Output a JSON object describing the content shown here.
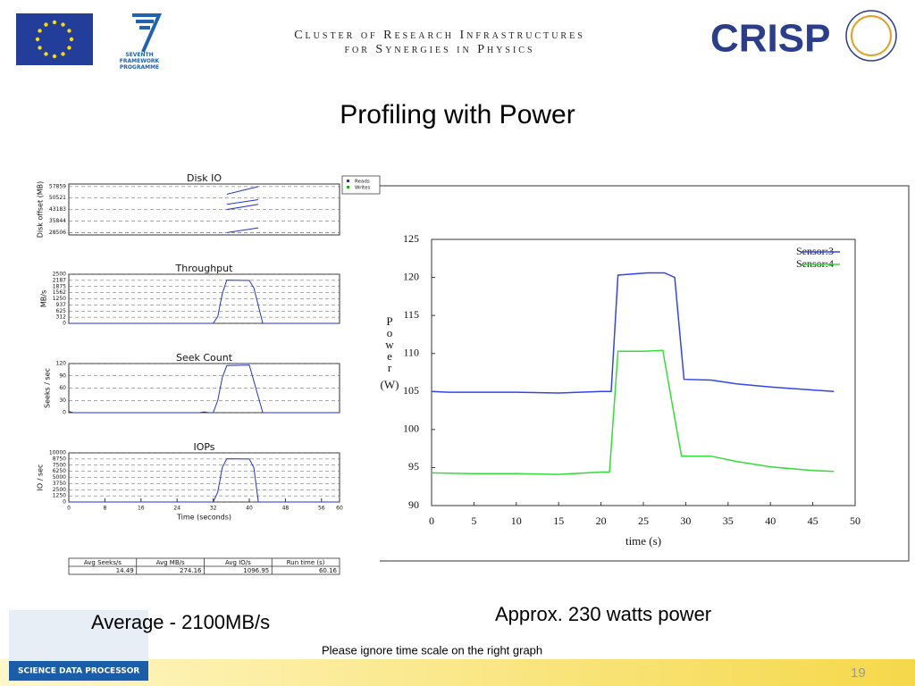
{
  "header": {
    "line1": "Cluster of Research Infrastructures",
    "line2": "for Synergies in Physics",
    "fp7_logo": "SEVENTH FRAMEWORK PROGRAMME",
    "crisp_logo": "CRISP"
  },
  "slide": {
    "title": "Profiling with Power",
    "left_caption": "Average - 2100MB/s",
    "right_caption": "Approx. 230 watts power",
    "note": "Please ignore time scale on the right graph",
    "page_number": "19",
    "footer_logo": "SCIENCE DATA PROCESSOR"
  },
  "table": {
    "columns": [
      "Avg Seeks/s",
      "Avg MB/s",
      "Avg IO/s",
      "Run time (s)"
    ],
    "rows": [
      [
        14.49,
        274.16,
        1096.95,
        60.16
      ]
    ]
  },
  "chart_data": [
    {
      "type": "line",
      "title": "Disk IO",
      "y_label": "Disk offset (MB)",
      "xlim": [
        0,
        60
      ],
      "ylim": [
        27000,
        59500
      ],
      "yticks": [
        28506,
        35844,
        43183,
        50521,
        57859
      ],
      "grid": true,
      "legend": "outside right",
      "series": [
        {
          "name": "Reads",
          "color": "#2233cc",
          "x": [
            35,
            42,
            null,
            35,
            42,
            null,
            35,
            42,
            null,
            35,
            42
          ],
          "values": [
            53000,
            57859,
            null,
            46500,
            49500,
            null,
            43183,
            46500,
            null,
            28506,
            31500
          ]
        },
        {
          "name": "Writes",
          "color": "#22aa22",
          "x": [],
          "values": []
        }
      ]
    },
    {
      "type": "line",
      "title": "Throughput",
      "y_label": "MB/s",
      "xlim": [
        0,
        60
      ],
      "ylim": [
        0,
        2500
      ],
      "yticks": [
        0,
        312,
        625,
        937,
        1250,
        1562,
        1875,
        2187,
        2500
      ],
      "grid": true,
      "x": [
        0,
        32,
        33,
        34,
        35,
        40,
        41,
        43,
        60
      ],
      "series": [
        {
          "name": "Throughput",
          "color": "#2233cc",
          "values": [
            0,
            0,
            350,
            1500,
            2200,
            2180,
            1800,
            0,
            0
          ]
        }
      ]
    },
    {
      "type": "line",
      "title": "Seek Count",
      "y_label": "Seeks / sec",
      "xlim": [
        0,
        60
      ],
      "ylim": [
        0,
        120
      ],
      "yticks": [
        0,
        30,
        60,
        90,
        120
      ],
      "grid": true,
      "x": [
        0,
        1,
        29,
        30,
        31,
        32,
        33,
        34,
        35,
        40,
        43,
        60
      ],
      "series": [
        {
          "name": "Seek Count",
          "color": "#2233cc",
          "values": [
            3,
            0,
            0,
            2,
            0,
            0,
            30,
            85,
            115,
            116,
            0,
            0
          ]
        }
      ]
    },
    {
      "type": "line",
      "title": "IOPs",
      "y_label": "IO / sec",
      "x_label": "Time (seconds)",
      "xlim": [
        0,
        60
      ],
      "ylim": [
        0,
        10000
      ],
      "yticks": [
        0,
        1250,
        2500,
        3750,
        5000,
        6250,
        7500,
        8750,
        10000
      ],
      "xticks": [
        0,
        8,
        16,
        24,
        32,
        40,
        48,
        56,
        60
      ],
      "grid": true,
      "x": [
        0,
        32,
        33,
        34,
        35,
        40,
        41,
        42,
        60
      ],
      "series": [
        {
          "name": "IOPs",
          "color": "#2233cc",
          "values": [
            0,
            0,
            2000,
            7000,
            8800,
            8750,
            7000,
            0,
            0
          ]
        }
      ]
    },
    {
      "type": "line",
      "y_label": "Power",
      "y_unit": "(W)",
      "x_label": "time (s)",
      "xlim": [
        0,
        50
      ],
      "ylim": [
        90,
        125
      ],
      "xticks": [
        0,
        5,
        10,
        15,
        20,
        25,
        30,
        35,
        40,
        45,
        50
      ],
      "yticks": [
        90,
        95,
        100,
        105,
        110,
        115,
        120,
        125
      ],
      "grid": false,
      "legend": "upper right",
      "series": [
        {
          "name": "Sensor:3",
          "color": "#3344ee",
          "x": [
            0,
            2,
            10,
            15,
            20,
            21.2,
            22,
            25.5,
            27.5,
            28.7,
            29.8,
            33,
            36,
            40,
            45,
            47.5
          ],
          "values": [
            105,
            104.9,
            104.9,
            104.8,
            105,
            105,
            120.3,
            120.6,
            120.6,
            120,
            106.6,
            106.5,
            106,
            105.6,
            105.2,
            105
          ]
        },
        {
          "name": "Sensor:4",
          "color": "#33dd33",
          "x": [
            0,
            5,
            10,
            15,
            20,
            21,
            22,
            25,
            27.3,
            28.3,
            29.5,
            33,
            36,
            40,
            45,
            47.5
          ],
          "values": [
            94.3,
            94.2,
            94.2,
            94.1,
            94.4,
            94.4,
            110.3,
            110.3,
            110.4,
            104,
            96.5,
            96.5,
            95.8,
            95.1,
            94.6,
            94.5
          ]
        }
      ]
    }
  ]
}
